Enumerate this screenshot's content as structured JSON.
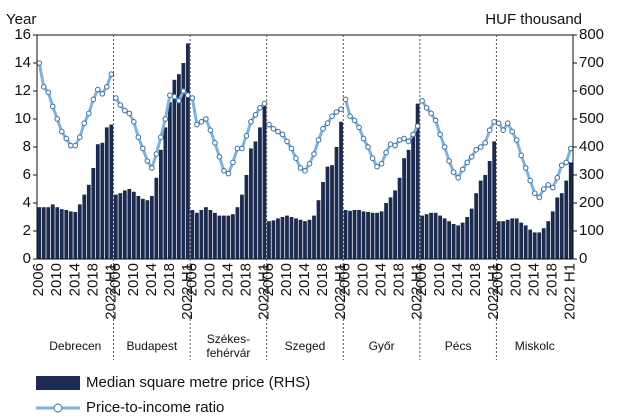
{
  "chart_data": {
    "type": "bar",
    "y_label": "Year",
    "y2_label": "HUF thousand",
    "ylim": [
      0,
      16
    ],
    "yticks": [
      0,
      2,
      4,
      6,
      8,
      10,
      12,
      14,
      16
    ],
    "y2lim": [
      0,
      800
    ],
    "y2ticks": [
      0,
      100,
      200,
      300,
      400,
      500,
      600,
      700,
      800
    ],
    "categories": [
      "2006",
      null,
      null,
      null,
      "2010",
      null,
      null,
      null,
      "2014",
      null,
      null,
      null,
      "2018",
      null,
      null,
      null,
      "2022 H1"
    ],
    "groups": [
      "Debrecen",
      "Budapest",
      "Székes-fehérvár",
      "Szeged",
      "Győr",
      "Pécs",
      "Miskolc"
    ],
    "series": [
      {
        "name": "Median square metre price (RHS)",
        "color": "#1c2a50",
        "type": "bar",
        "axis": "y2",
        "values": [
          [
            185,
            185,
            185,
            195,
            185,
            178,
            175,
            170,
            168,
            195,
            230,
            265,
            325,
            410,
            415,
            470,
            480
          ],
          [
            230,
            235,
            245,
            250,
            240,
            225,
            215,
            210,
            225,
            290,
            390,
            470,
            560,
            640,
            660,
            700,
            770
          ],
          [
            175,
            165,
            175,
            185,
            175,
            165,
            155,
            155,
            155,
            160,
            185,
            230,
            300,
            395,
            420,
            470,
            560
          ],
          [
            135,
            138,
            145,
            150,
            155,
            150,
            145,
            140,
            135,
            140,
            155,
            210,
            275,
            330,
            335,
            400,
            490
          ],
          [
            175,
            172,
            175,
            175,
            170,
            168,
            165,
            165,
            170,
            200,
            220,
            245,
            290,
            360,
            390,
            450,
            555
          ],
          [
            155,
            160,
            165,
            165,
            155,
            145,
            135,
            125,
            120,
            130,
            150,
            180,
            235,
            280,
            300,
            350,
            420
          ],
          [
            135,
            135,
            140,
            145,
            145,
            130,
            120,
            105,
            95,
            95,
            110,
            135,
            170,
            220,
            235,
            280,
            345
          ]
        ]
      },
      {
        "name": "Price-to-income ratio",
        "color": "#7fb3db",
        "type": "line",
        "values": [
          [
            14.0,
            12.3,
            11.9,
            10.9,
            10.0,
            9.1,
            8.6,
            8.1,
            8.1,
            8.7,
            9.7,
            10.4,
            11.4,
            12.1,
            11.8,
            12.3,
            13.2
          ],
          [
            11.5,
            11.0,
            10.6,
            10.4,
            9.8,
            8.7,
            7.9,
            7.0,
            6.5,
            7.5,
            8.7,
            10.0,
            11.7,
            11.6,
            11.3,
            12.0,
            11.7
          ],
          [
            11.5,
            9.6,
            9.8,
            10.0,
            9.2,
            8.3,
            7.3,
            6.3,
            6.1,
            6.9,
            7.9,
            7.9,
            8.8,
            9.8,
            10.3,
            10.8,
            11.1
          ],
          [
            9.6,
            9.3,
            9.1,
            8.9,
            8.4,
            7.9,
            7.2,
            6.5,
            6.3,
            6.8,
            7.5,
            8.5,
            9.3,
            9.7,
            10.2,
            10.5,
            10.7
          ],
          [
            11.4,
            10.2,
            9.9,
            9.4,
            8.6,
            8.0,
            7.2,
            6.6,
            6.8,
            7.6,
            8.2,
            8.1,
            8.5,
            8.6,
            8.4,
            8.9,
            9.5
          ],
          [
            11.3,
            10.8,
            10.4,
            9.9,
            8.9,
            8.0,
            7.0,
            6.2,
            5.8,
            6.4,
            6.9,
            7.3,
            7.8,
            8.0,
            8.3,
            9.2,
            9.8
          ],
          [
            9.7,
            9.2,
            9.7,
            9.1,
            8.5,
            7.4,
            6.5,
            5.6,
            4.7,
            4.4,
            5.0,
            5.3,
            5.1,
            5.8,
            6.7,
            6.9,
            7.9
          ]
        ]
      }
    ]
  }
}
